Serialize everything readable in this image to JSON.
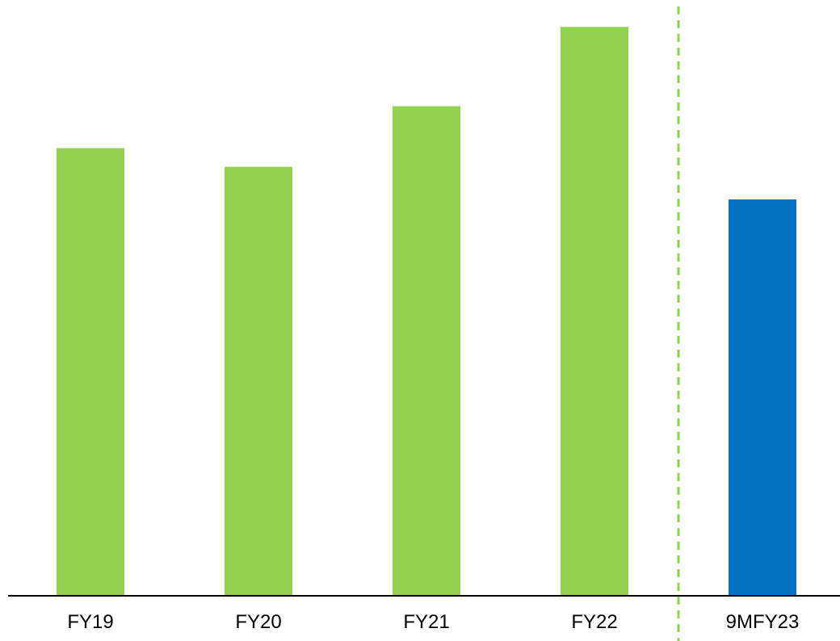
{
  "chart_data": {
    "type": "bar",
    "categories": [
      "FY19",
      "FY20",
      "FY21",
      "FY22",
      "9MFY23"
    ],
    "values": [
      96,
      92,
      105,
      122,
      85
    ],
    "ylim": [
      0,
      125
    ],
    "grid": false,
    "colors": {
      "actual": "#92d050",
      "partial_year": "#0070c0",
      "axis": "#000000",
      "separator": "#92d050"
    },
    "bar_color_keys": [
      "actual",
      "actual",
      "actual",
      "actual",
      "partial_year"
    ],
    "separator_after_category": "FY22"
  }
}
